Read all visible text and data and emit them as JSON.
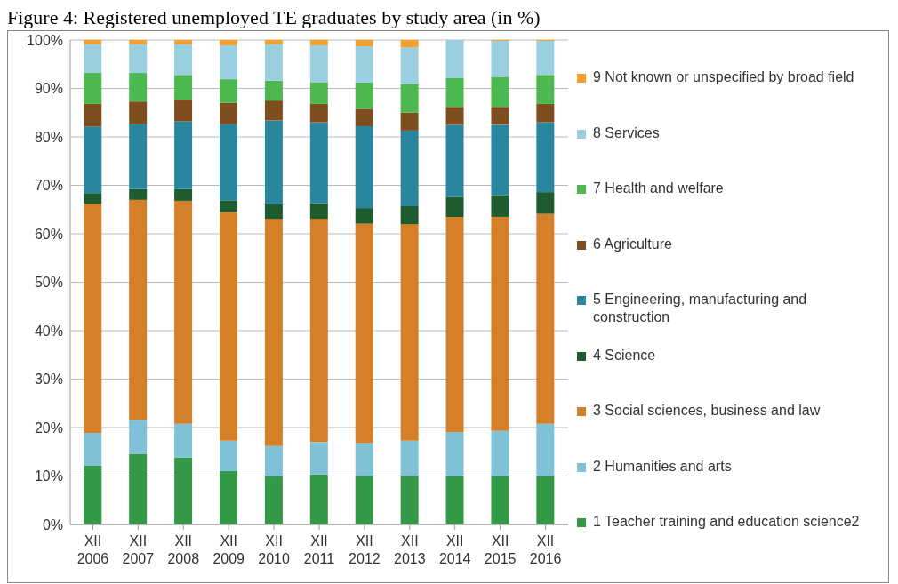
{
  "chart_data": {
    "type": "bar",
    "title": "Figure 4: Registered unemployed TE graduates by study area (in %)",
    "stacked": true,
    "categories": [
      "XII 2006",
      "XII 2007",
      "XII 2008",
      "XII 2009",
      "XII 2010",
      "XII 2011",
      "XII 2012",
      "XII 2013",
      "XII 2014",
      "XII 2015",
      "XII 2016"
    ],
    "series": [
      {
        "name": "1 Teacher training and education science2",
        "color": "#339947",
        "values": [
          12.2,
          14.6,
          13.8,
          11.0,
          9.9,
          10.3,
          10.0,
          10.0,
          9.9,
          9.9,
          9.9
        ]
      },
      {
        "name": "2 Humanities and arts",
        "color": "#7fc1d6",
        "values": [
          6.7,
          7.0,
          7.0,
          6.3,
          6.3,
          6.7,
          6.8,
          7.3,
          9.2,
          9.4,
          10.9
        ]
      },
      {
        "name": "3 Social sciences, business and law",
        "color": "#d58029",
        "values": [
          47.3,
          45.4,
          46.0,
          47.2,
          46.9,
          46.1,
          45.3,
          44.7,
          44.4,
          44.2,
          43.3
        ]
      },
      {
        "name": "4 Science",
        "color": "#1e5c30",
        "values": [
          2.2,
          2.2,
          2.4,
          2.4,
          3.0,
          3.2,
          3.2,
          3.7,
          4.1,
          4.5,
          4.5
        ]
      },
      {
        "name": "5 Engineering, manufacturing and construction",
        "color": "#2a869e",
        "values": [
          13.7,
          13.4,
          14.0,
          15.7,
          17.3,
          16.7,
          16.9,
          15.6,
          14.9,
          14.5,
          14.4
        ]
      },
      {
        "name": "6 Agriculture",
        "color": "#7e4e1f",
        "values": [
          4.7,
          4.7,
          4.5,
          4.4,
          4.1,
          3.8,
          3.6,
          3.7,
          3.7,
          3.7,
          3.8
        ]
      },
      {
        "name": "7 Health and welfare",
        "color": "#4db84f",
        "values": [
          6.4,
          5.9,
          5.1,
          4.9,
          4.1,
          4.5,
          5.4,
          5.9,
          6.0,
          6.2,
          6.0
        ]
      },
      {
        "name": "8 Services",
        "color": "#9acfe0",
        "values": [
          5.9,
          5.9,
          6.3,
          7.0,
          7.5,
          7.6,
          7.5,
          7.6,
          7.8,
          7.4,
          7.0
        ]
      },
      {
        "name": "9 Not known or unspecified by broad field",
        "color": "#f5a02c",
        "values": [
          0.9,
          0.9,
          0.9,
          1.1,
          0.9,
          1.1,
          1.3,
          1.5,
          0,
          0.2,
          0.2
        ]
      }
    ],
    "ylim": [
      0,
      100
    ],
    "yticks": [
      {
        "value": 0,
        "label": "0%"
      },
      {
        "value": 10,
        "label": "10%"
      },
      {
        "value": 20,
        "label": "20%"
      },
      {
        "value": 30,
        "label": "30%"
      },
      {
        "value": 40,
        "label": "40%"
      },
      {
        "value": 50,
        "label": "50%"
      },
      {
        "value": 60,
        "label": "60%"
      },
      {
        "value": 70,
        "label": "70%"
      },
      {
        "value": 80,
        "label": "80%"
      },
      {
        "value": 90,
        "label": "90%"
      },
      {
        "value": 100,
        "label": "100%"
      }
    ],
    "grid": "y",
    "legend": "right"
  }
}
